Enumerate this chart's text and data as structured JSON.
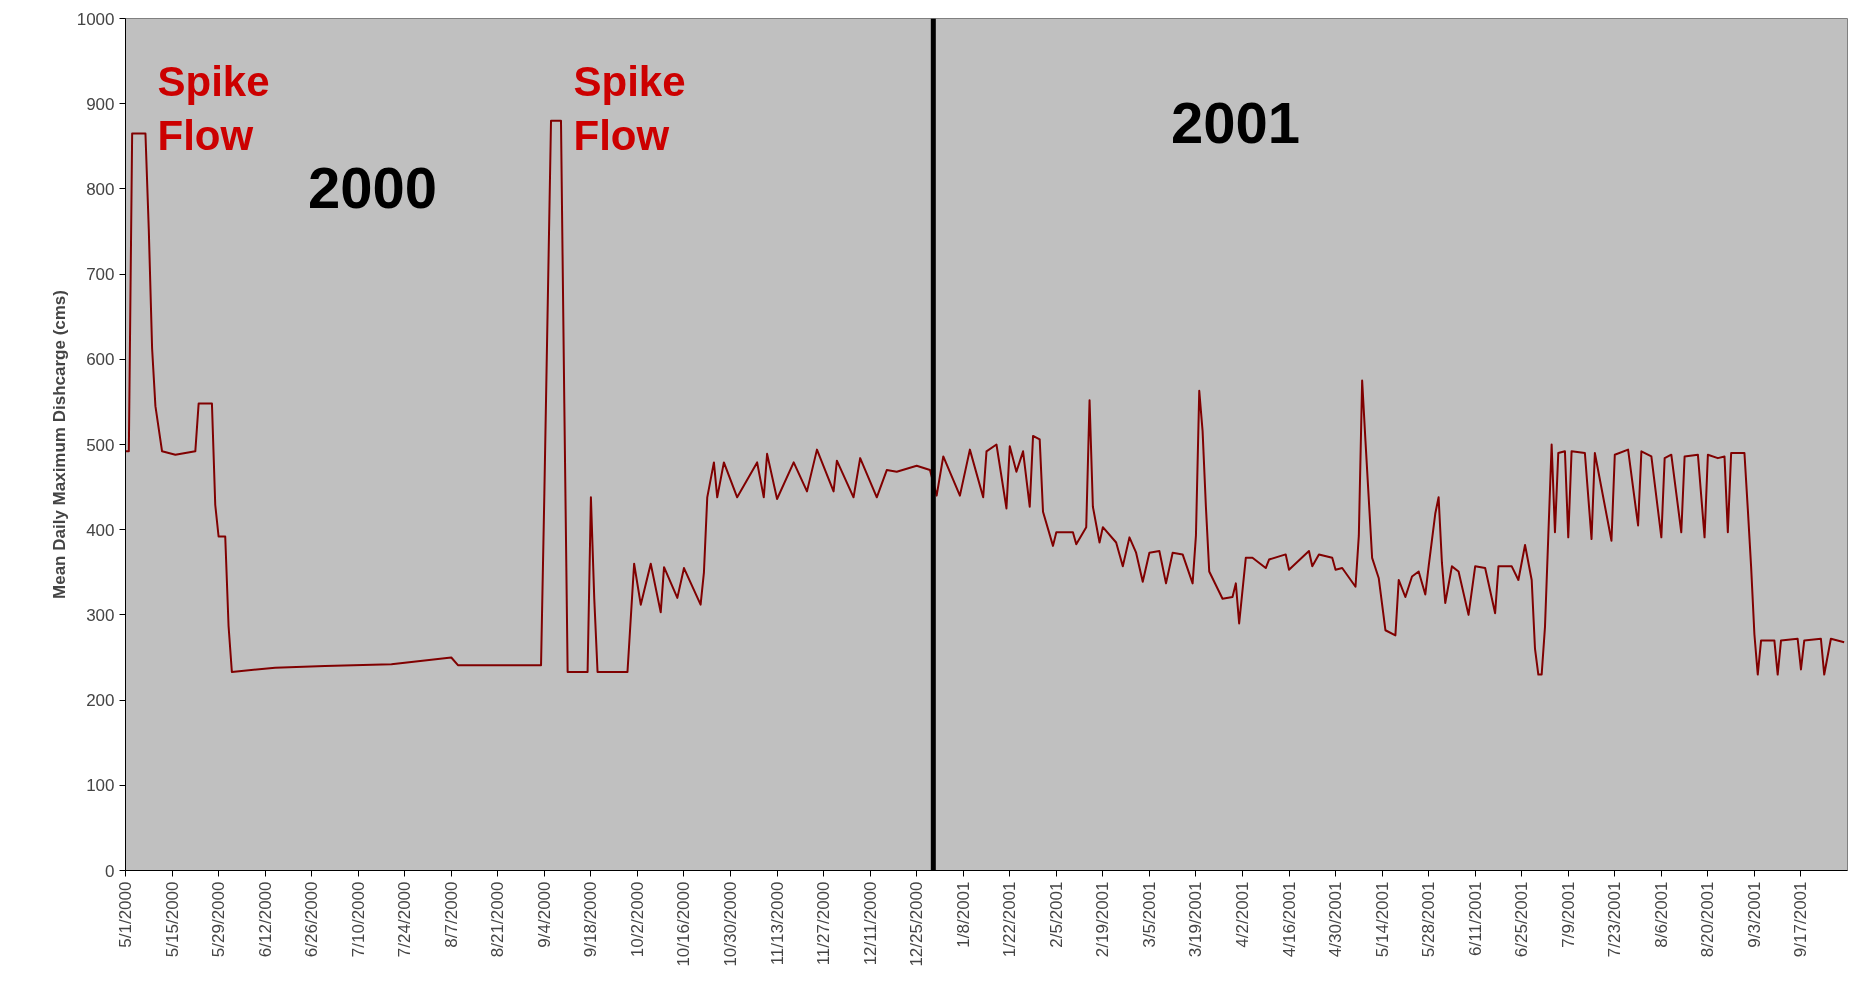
{
  "chart_data": {
    "type": "line",
    "ylabel": "Mean Daily Maximum Dishcarge (cms)",
    "xlim": [
      "2000-05-01",
      "2001-10-01"
    ],
    "ylim": [
      0,
      1000
    ],
    "yticks": [
      0,
      100,
      200,
      300,
      400,
      500,
      600,
      700,
      800,
      900,
      1000
    ],
    "xticks": [
      {
        "value": "2000-05-01",
        "label": "5/1/2000"
      },
      {
        "value": "2000-05-15",
        "label": "5/15/2000"
      },
      {
        "value": "2000-05-29",
        "label": "5/29/2000"
      },
      {
        "value": "2000-06-12",
        "label": "6/12/2000"
      },
      {
        "value": "2000-06-26",
        "label": "6/26/2000"
      },
      {
        "value": "2000-07-10",
        "label": "7/10/2000"
      },
      {
        "value": "2000-07-24",
        "label": "7/24/2000"
      },
      {
        "value": "2000-08-07",
        "label": "8/7/2000"
      },
      {
        "value": "2000-08-21",
        "label": "8/21/2000"
      },
      {
        "value": "2000-09-04",
        "label": "9/4/2000"
      },
      {
        "value": "2000-09-18",
        "label": "9/18/2000"
      },
      {
        "value": "2000-10-02",
        "label": "10/2/2000"
      },
      {
        "value": "2000-10-16",
        "label": "10/16/2000"
      },
      {
        "value": "2000-10-30",
        "label": "10/30/2000"
      },
      {
        "value": "2000-11-13",
        "label": "11/13/2000"
      },
      {
        "value": "2000-11-27",
        "label": "11/27/2000"
      },
      {
        "value": "2000-12-11",
        "label": "12/11/2000"
      },
      {
        "value": "2000-12-25",
        "label": "12/25/2000"
      },
      {
        "value": "2001-01-08",
        "label": "1/8/2001"
      },
      {
        "value": "2001-01-22",
        "label": "1/22/2001"
      },
      {
        "value": "2001-02-05",
        "label": "2/5/2001"
      },
      {
        "value": "2001-02-19",
        "label": "2/19/2001"
      },
      {
        "value": "2001-03-05",
        "label": "3/5/2001"
      },
      {
        "value": "2001-03-19",
        "label": "3/19/2001"
      },
      {
        "value": "2001-04-02",
        "label": "4/2/2001"
      },
      {
        "value": "2001-04-16",
        "label": "4/16/2001"
      },
      {
        "value": "2001-04-30",
        "label": "4/30/2001"
      },
      {
        "value": "2001-05-14",
        "label": "5/14/2001"
      },
      {
        "value": "2001-05-28",
        "label": "5/28/2001"
      },
      {
        "value": "2001-06-11",
        "label": "6/11/2001"
      },
      {
        "value": "2001-06-25",
        "label": "6/25/2001"
      },
      {
        "value": "2001-07-09",
        "label": "7/9/2001"
      },
      {
        "value": "2001-07-23",
        "label": "7/23/2001"
      },
      {
        "value": "2001-08-06",
        "label": "8/6/2001"
      },
      {
        "value": "2001-08-20",
        "label": "8/20/2001"
      },
      {
        "value": "2001-09-03",
        "label": "9/3/2001"
      },
      {
        "value": "2001-09-17",
        "label": "9/17/2001"
      }
    ],
    "grid": false,
    "ref_lines": [
      {
        "axis": "x",
        "value": "2000-12-30",
        "color": "#000000"
      }
    ],
    "annotations": [
      "Spike\nFlow",
      "Spike\nFlow",
      "2000",
      "2001"
    ],
    "series": [
      {
        "color": "#800000",
        "x": [
          "2000-05-01",
          "2000-05-02",
          "2000-05-03",
          "2000-05-07",
          "2000-05-08",
          "2000-05-09",
          "2000-05-10",
          "2000-05-12",
          "2000-05-16",
          "2000-05-22",
          "2000-05-23",
          "2000-05-27",
          "2000-05-28",
          "2000-05-29",
          "2000-05-31",
          "2000-06-01",
          "2000-06-02",
          "2000-06-15",
          "2000-06-30",
          "2000-07-20",
          "2000-08-07",
          "2000-08-09",
          "2000-09-03",
          "2000-09-04",
          "2000-09-06",
          "2000-09-09",
          "2000-09-10",
          "2000-09-11",
          "2000-09-17",
          "2000-09-18",
          "2000-09-19",
          "2000-09-20",
          "2000-09-29",
          "2000-10-01",
          "2000-10-03",
          "2000-10-06",
          "2000-10-09",
          "2000-10-10",
          "2000-10-14",
          "2000-10-16",
          "2000-10-21",
          "2000-10-22",
          "2000-10-23",
          "2000-10-25",
          "2000-10-26",
          "2000-10-28",
          "2000-11-01",
          "2000-11-07",
          "2000-11-09",
          "2000-11-10",
          "2000-11-13",
          "2000-11-18",
          "2000-11-22",
          "2000-11-25",
          "2000-11-30",
          "2000-12-01",
          "2000-12-06",
          "2000-12-08",
          "2000-12-13",
          "2000-12-16",
          "2000-12-19",
          "2000-12-25",
          "2000-12-29",
          "2000-12-31",
          "2001-01-02",
          "2001-01-07",
          "2001-01-10",
          "2001-01-14",
          "2001-01-15",
          "2001-01-18",
          "2001-01-21",
          "2001-01-22",
          "2001-01-24",
          "2001-01-26",
          "2001-01-28",
          "2001-01-29",
          "2001-01-31",
          "2001-02-01",
          "2001-02-04",
          "2001-02-05",
          "2001-02-10",
          "2001-02-11",
          "2001-02-14",
          "2001-02-15",
          "2001-02-16",
          "2001-02-18",
          "2001-02-19",
          "2001-02-23",
          "2001-02-25",
          "2001-02-27",
          "2001-03-01",
          "2001-03-03",
          "2001-03-05",
          "2001-03-08",
          "2001-03-10",
          "2001-03-12",
          "2001-03-15",
          "2001-03-18",
          "2001-03-19",
          "2001-03-20",
          "2001-03-21",
          "2001-03-22",
          "2001-03-23",
          "2001-03-27",
          "2001-03-30",
          "2001-03-31",
          "2001-04-01",
          "2001-04-03",
          "2001-04-05",
          "2001-04-09",
          "2001-04-10",
          "2001-04-15",
          "2001-04-16",
          "2001-04-22",
          "2001-04-23",
          "2001-04-25",
          "2001-04-29",
          "2001-04-30",
          "2001-05-02",
          "2001-05-06",
          "2001-05-07",
          "2001-05-08",
          "2001-05-09",
          "2001-05-11",
          "2001-05-13",
          "2001-05-15",
          "2001-05-18",
          "2001-05-19",
          "2001-05-21",
          "2001-05-23",
          "2001-05-25",
          "2001-05-27",
          "2001-05-28",
          "2001-05-30",
          "2001-05-31",
          "2001-06-01",
          "2001-06-02",
          "2001-06-04",
          "2001-06-06",
          "2001-06-09",
          "2001-06-11",
          "2001-06-14",
          "2001-06-17",
          "2001-06-18",
          "2001-06-22",
          "2001-06-24",
          "2001-06-26",
          "2001-06-28",
          "2001-06-29",
          "2001-06-30",
          "2001-07-01",
          "2001-07-02",
          "2001-07-03",
          "2001-07-04",
          "2001-07-05",
          "2001-07-06",
          "2001-07-08",
          "2001-07-09",
          "2001-07-10",
          "2001-07-14",
          "2001-07-16",
          "2001-07-17",
          "2001-07-22",
          "2001-07-23",
          "2001-07-27",
          "2001-07-30",
          "2001-07-31",
          "2001-08-03",
          "2001-08-06",
          "2001-08-07",
          "2001-08-09",
          "2001-08-12",
          "2001-08-13",
          "2001-08-17",
          "2001-08-19",
          "2001-08-20",
          "2001-08-23",
          "2001-08-25",
          "2001-08-26",
          "2001-08-27",
          "2001-08-31",
          "2001-09-01",
          "2001-09-02",
          "2001-09-03",
          "2001-09-04",
          "2001-09-05",
          "2001-09-09",
          "2001-09-10",
          "2001-09-11",
          "2001-09-16",
          "2001-09-17",
          "2001-09-18",
          "2001-09-23",
          "2001-09-24",
          "2001-09-26",
          "2001-09-30"
        ],
        "values": [
          492,
          492,
          865,
          865,
          753,
          613,
          545,
          492,
          488,
          492,
          548,
          548,
          429,
          392,
          392,
          287,
          233,
          238,
          240,
          242,
          250,
          241,
          241,
          443,
          880,
          880,
          548,
          233,
          233,
          438,
          320,
          233,
          233,
          360,
          312,
          360,
          303,
          356,
          320,
          355,
          312,
          350,
          438,
          479,
          438,
          479,
          438,
          479,
          438,
          489,
          436,
          479,
          445,
          494,
          445,
          481,
          438,
          484,
          438,
          470,
          468,
          475,
          470,
          440,
          486,
          440,
          494,
          438,
          492,
          500,
          425,
          498,
          468,
          492,
          427,
          510,
          506,
          421,
          381,
          397,
          397,
          383,
          403,
          552,
          427,
          385,
          403,
          385,
          357,
          391,
          373,
          339,
          373,
          375,
          337,
          373,
          371,
          337,
          393,
          563,
          516,
          427,
          351,
          319,
          321,
          337,
          290,
          367,
          367,
          355,
          365,
          371,
          353,
          375,
          357,
          371,
          367,
          353,
          355,
          333,
          393,
          575,
          504,
          367,
          343,
          282,
          276,
          341,
          321,
          345,
          351,
          324,
          357,
          419,
          438,
          361,
          314,
          357,
          351,
          300,
          357,
          355,
          302,
          357,
          357,
          341,
          382,
          341,
          260,
          230,
          230,
          286,
          393,
          500,
          397,
          490,
          492,
          391,
          492,
          490,
          389,
          490,
          387,
          488,
          494,
          405,
          492,
          486,
          391,
          484,
          488,
          397,
          486,
          488,
          391,
          488,
          484,
          486,
          397,
          490,
          490,
          425,
          357,
          277,
          230,
          270,
          270,
          230,
          270,
          272,
          236,
          270,
          272,
          230,
          272,
          268
        ]
      }
    ]
  }
}
